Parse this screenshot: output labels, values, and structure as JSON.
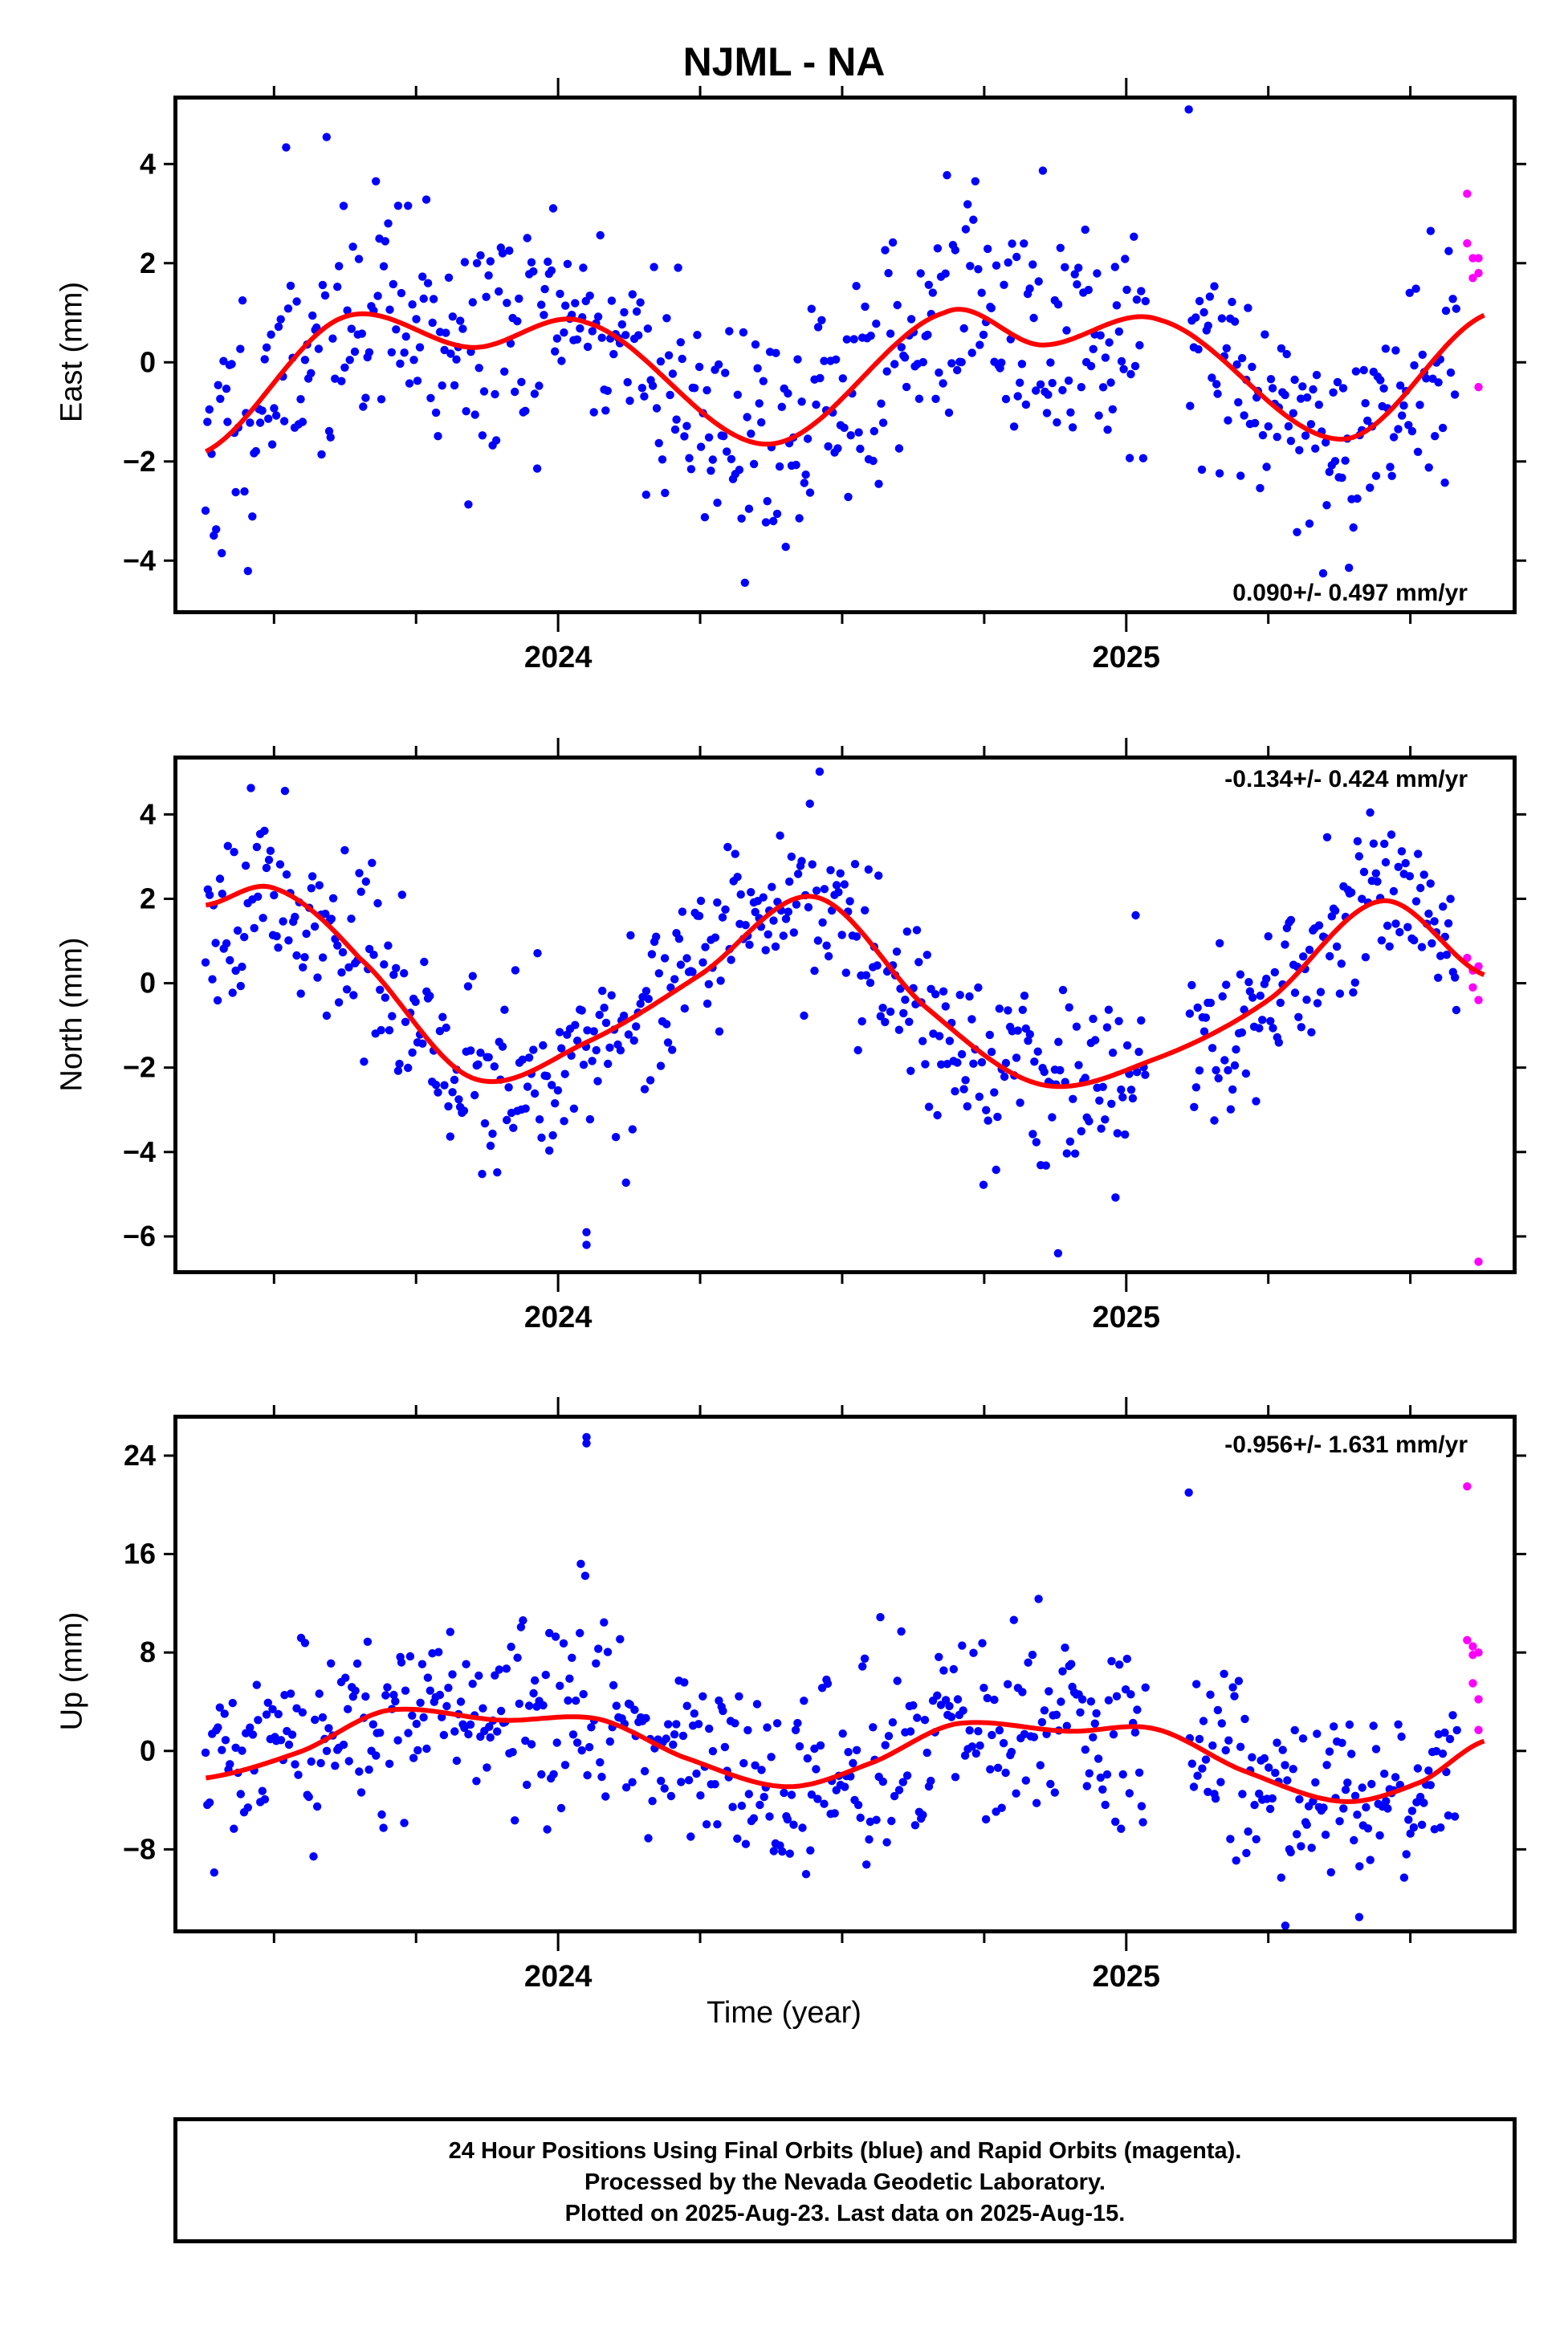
{
  "title": "NJML - NA",
  "xlabel": "Time (year)",
  "footer": [
    "24 Hour Positions Using Final Orbits (blue) and Rapid Orbits (magenta).",
    "Processed by the Nevada Geodetic Laboratory.",
    "Plotted on 2025-Aug-23. Last data on 2025-Aug-15."
  ],
  "colors": {
    "final": "#0000ff",
    "rapid": "#ff00ff",
    "fit": "#ff0000",
    "frame": "#000000"
  },
  "chart_data": [
    {
      "type": "scatter",
      "name": "east",
      "ylabel": "East (mm)",
      "rate_label": "0.090+/- 0.497 mm/yr",
      "xlim": [
        2023.33,
        2025.68
      ],
      "ylim": [
        -5.0,
        5.3
      ],
      "yticks": [
        -4,
        -2,
        0,
        2,
        4
      ],
      "xtick_labels": [
        "2024",
        "2025"
      ],
      "xtick_values": [
        2024,
        2025
      ],
      "fit": {
        "mean": 0.0,
        "slope": 0.09,
        "annual_cos": -0.55,
        "annual_sin": 0.6,
        "semi_cos": -0.8,
        "semi_sin": -0.5,
        "anchor": [
          [
            2023.38,
            -1.8
          ],
          [
            2023.62,
            0.9
          ],
          [
            2023.85,
            0.3
          ],
          [
            2024.05,
            0.8
          ],
          [
            2024.37,
            -1.65
          ],
          [
            2024.68,
            1.0
          ],
          [
            2024.85,
            0.35
          ],
          [
            2025.06,
            0.85
          ],
          [
            2025.38,
            -1.55
          ],
          [
            2025.63,
            0.95
          ]
        ]
      },
      "scatter": {
        "points": 620,
        "noise": 1.25,
        "seed": 11
      },
      "rapid": {
        "x": [
          2025.6,
          2025.6,
          2025.61,
          2025.61,
          2025.62,
          2025.62,
          2025.62
        ],
        "y": [
          3.4,
          2.4,
          2.1,
          1.7,
          2.1,
          1.8,
          -0.5
        ]
      },
      "outliers": {
        "x": [
          2025.11
        ],
        "y": [
          5.1
        ]
      }
    },
    {
      "type": "scatter",
      "name": "north",
      "ylabel": "North (mm)",
      "rate_label": "-0.134+/- 0.424 mm/yr",
      "xlim": [
        2023.33,
        2025.68
      ],
      "ylim": [
        -6.8,
        5.3
      ],
      "yticks": [
        -6,
        -4,
        -2,
        0,
        2,
        4
      ],
      "xtick_labels": [
        "2024",
        "2025"
      ],
      "xtick_values": [
        2024,
        2025
      ],
      "fit": {
        "anchor": [
          [
            2023.38,
            1.85
          ],
          [
            2023.5,
            2.25
          ],
          [
            2023.65,
            0.6
          ],
          [
            2023.85,
            -2.25
          ],
          [
            2024.05,
            -1.4
          ],
          [
            2024.25,
            0.2
          ],
          [
            2024.45,
            2.05
          ],
          [
            2024.65,
            -0.6
          ],
          [
            2024.85,
            -2.4
          ],
          [
            2025.05,
            -1.8
          ],
          [
            2025.25,
            -0.4
          ],
          [
            2025.45,
            1.95
          ],
          [
            2025.63,
            0.2
          ]
        ]
      },
      "scatter": {
        "points": 620,
        "noise": 1.05,
        "seed": 23
      },
      "rapid": {
        "x": [
          2025.6,
          2025.61,
          2025.61,
          2025.62,
          2025.62,
          2025.62
        ],
        "y": [
          0.6,
          0.3,
          -0.1,
          0.4,
          -0.4,
          -6.6
        ]
      },
      "outliers": {
        "x": [
          2024.05,
          2024.05,
          2024.88
        ],
        "y": [
          -5.9,
          -6.2,
          -6.4
        ]
      }
    },
    {
      "type": "scatter",
      "name": "up",
      "ylabel": "Up (mm)",
      "rate_label": "-0.956+/- 1.631 mm/yr",
      "xlim": [
        2023.33,
        2025.68
      ],
      "ylim": [
        -14.5,
        27.0
      ],
      "yticks": [
        -8,
        0,
        8,
        16,
        24
      ],
      "xtick_labels": [
        "2024",
        "2025"
      ],
      "xtick_values": [
        2024,
        2025
      ],
      "fit": {
        "anchor": [
          [
            2023.38,
            -2.2
          ],
          [
            2023.55,
            0.0
          ],
          [
            2023.7,
            3.3
          ],
          [
            2023.9,
            2.5
          ],
          [
            2024.07,
            2.6
          ],
          [
            2024.22,
            -0.5
          ],
          [
            2024.4,
            -2.9
          ],
          [
            2024.55,
            -1.0
          ],
          [
            2024.7,
            2.2
          ],
          [
            2024.9,
            1.6
          ],
          [
            2025.05,
            1.8
          ],
          [
            2025.2,
            -1.5
          ],
          [
            2025.38,
            -4.1
          ],
          [
            2025.52,
            -2.5
          ],
          [
            2025.63,
            0.8
          ]
        ]
      },
      "scatter": {
        "points": 620,
        "noise": 3.8,
        "seed": 37
      },
      "rapid": {
        "x": [
          2025.6,
          2025.6,
          2025.61,
          2025.61,
          2025.61,
          2025.62,
          2025.62,
          2025.62
        ],
        "y": [
          21.5,
          9.0,
          8.5,
          7.8,
          5.5,
          4.2,
          1.7,
          8.0
        ]
      },
      "outliers": {
        "x": [
          2024.05,
          2024.05,
          2024.04,
          2025.11,
          2025.28,
          2025.41
        ],
        "y": [
          25.5,
          25.0,
          15.2,
          21.0,
          -14.2,
          -13.5
        ]
      }
    }
  ]
}
